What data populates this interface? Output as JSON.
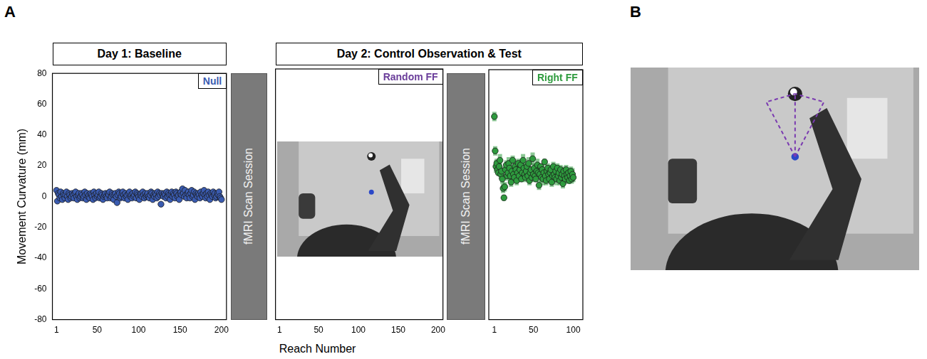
{
  "panel_labels": [
    "A",
    "B"
  ],
  "headers": [
    "Day 1: Baseline",
    "Day 2: Control Observation & Test"
  ],
  "scan_session": "fMRI Scan Session",
  "x_label": "Reach Number",
  "chart_data": [
    {
      "type": "scatter",
      "title": "Null",
      "color": "#3a5bb0",
      "y_label": "Movement Curvature (mm)",
      "xlim": [
        -4,
        206
      ],
      "xticks": [
        1,
        50,
        100,
        150,
        200
      ],
      "ylim": [
        -80,
        80
      ],
      "yticks": [
        -80,
        -60,
        -40,
        -20,
        0,
        20,
        40,
        60,
        80
      ],
      "grid": false,
      "x": [
        1,
        2,
        3,
        4,
        5,
        6,
        7,
        8,
        9,
        10,
        11,
        12,
        13,
        14,
        15,
        16,
        17,
        18,
        19,
        20,
        21,
        22,
        23,
        24,
        25,
        26,
        27,
        28,
        29,
        30,
        31,
        32,
        33,
        34,
        35,
        36,
        37,
        38,
        39,
        40,
        41,
        42,
        43,
        44,
        45,
        46,
        47,
        48,
        49,
        50,
        51,
        52,
        53,
        54,
        55,
        56,
        57,
        58,
        59,
        60,
        61,
        62,
        63,
        64,
        65,
        66,
        67,
        68,
        69,
        70,
        71,
        72,
        73,
        74,
        75,
        76,
        77,
        78,
        79,
        80,
        81,
        82,
        83,
        84,
        85,
        86,
        87,
        88,
        89,
        90,
        91,
        92,
        93,
        94,
        95,
        96,
        97,
        98,
        99,
        100,
        101,
        102,
        103,
        104,
        105,
        106,
        107,
        108,
        109,
        110,
        111,
        112,
        113,
        114,
        115,
        116,
        117,
        118,
        119,
        120,
        121,
        122,
        123,
        124,
        125,
        126,
        127,
        128,
        129,
        130,
        131,
        132,
        133,
        134,
        135,
        136,
        137,
        138,
        139,
        140,
        141,
        142,
        143,
        144,
        145,
        146,
        147,
        148,
        149,
        150,
        151,
        152,
        153,
        154,
        155,
        156,
        157,
        158,
        159,
        160,
        161,
        162,
        163,
        164,
        165,
        166,
        167,
        168,
        169,
        170,
        171,
        172,
        173,
        174,
        175,
        176,
        177,
        178,
        179,
        180,
        181,
        182,
        183,
        184,
        185,
        186,
        187,
        188,
        189,
        190,
        191,
        192,
        193,
        194,
        195,
        196,
        197,
        198,
        199,
        200
      ],
      "values": [
        4,
        -3,
        2,
        1,
        -1,
        3,
        0,
        -2,
        2,
        1,
        -1,
        1,
        3,
        0,
        -2,
        2,
        1,
        -1,
        0,
        2,
        1,
        -1,
        2,
        3,
        0,
        -2,
        1,
        2,
        -1,
        0,
        2,
        1,
        -1,
        0,
        3,
        1,
        -2,
        2,
        0,
        1,
        -1,
        2,
        1,
        0,
        -2,
        3,
        1,
        -1,
        2,
        0,
        1,
        3,
        -1,
        0,
        2,
        1,
        -2,
        0,
        1,
        2,
        0,
        -1,
        2,
        1,
        3,
        -1,
        0,
        2,
        1,
        -2,
        1,
        2,
        0,
        -4,
        1,
        3,
        2,
        -1,
        0,
        2,
        3,
        1,
        -1,
        2,
        0,
        1,
        -2,
        2,
        3,
        0,
        1,
        -1,
        2,
        0,
        1,
        3,
        -1,
        2,
        1,
        0,
        -2,
        1,
        2,
        0,
        3,
        1,
        -1,
        2,
        0,
        1,
        2,
        0,
        -1,
        1,
        3,
        2,
        -2,
        1,
        0,
        2,
        1,
        -1,
        3,
        0,
        2,
        1,
        -5,
        2,
        1,
        0,
        2,
        1,
        -1,
        3,
        0,
        2,
        1,
        -2,
        1,
        3,
        0,
        2,
        1,
        -1,
        3,
        2,
        0,
        1,
        -2,
        2,
        3,
        1,
        5,
        2,
        0,
        4,
        1,
        -1,
        2,
        3,
        1,
        -1,
        2,
        4,
        0,
        1,
        3,
        -2,
        2,
        1,
        0,
        2,
        1,
        -1,
        3,
        1,
        0,
        2,
        4,
        1,
        -1,
        2,
        0,
        3,
        1,
        -2,
        2,
        1,
        0,
        3,
        1,
        2,
        -1,
        0,
        2,
        1,
        3,
        0,
        -1,
        -2
      ]
    },
    {
      "type": "scatter",
      "title": "Random FF",
      "color": "#6a3d9a",
      "tick_labels": "x",
      "xlim": [
        -4,
        206
      ],
      "xticks": [
        1,
        50,
        100,
        150,
        200
      ],
      "ylim": [
        -80,
        80
      ],
      "yticks": [
        -80,
        -60,
        -40,
        -20,
        0,
        20,
        40,
        60,
        80
      ],
      "grid": false,
      "x": [],
      "values": []
    },
    {
      "type": "scatter",
      "title": "Right FF",
      "color": "#2e9b3e",
      "tick_labels": "x",
      "xlim": [
        -6,
        112
      ],
      "xticks": [
        1,
        50,
        100
      ],
      "ylim": [
        -80,
        80
      ],
      "yticks": [
        -80,
        -60,
        -40,
        -20,
        0,
        20,
        40,
        60,
        80
      ],
      "grid": false,
      "x": [
        1,
        2,
        3,
        4,
        5,
        6,
        7,
        8,
        9,
        10,
        11,
        12,
        13,
        14,
        15,
        16,
        17,
        18,
        19,
        20,
        21,
        22,
        23,
        24,
        25,
        26,
        27,
        28,
        29,
        30,
        31,
        32,
        33,
        34,
        35,
        36,
        37,
        38,
        39,
        40,
        41,
        42,
        43,
        44,
        45,
        46,
        47,
        48,
        49,
        50,
        51,
        52,
        53,
        54,
        55,
        56,
        57,
        58,
        59,
        60,
        61,
        62,
        63,
        64,
        65,
        66,
        67,
        68,
        69,
        70,
        71,
        72,
        73,
        74,
        75,
        76,
        77,
        78,
        79,
        80,
        81,
        82,
        83,
        84,
        85,
        86,
        87,
        88,
        89,
        90,
        91,
        92,
        93,
        94,
        95,
        96,
        97,
        98,
        99,
        100
      ],
      "values": [
        50,
        28,
        18,
        20,
        16,
        14,
        18,
        22,
        13,
        15,
        10,
        4,
        -2,
        5,
        16,
        19,
        12,
        14,
        20,
        17,
        12,
        8,
        15,
        22,
        13,
        11,
        18,
        16,
        9,
        14,
        20,
        12,
        16,
        19,
        10,
        14,
        22,
        17,
        13,
        11,
        15,
        18,
        12,
        20,
        9,
        14,
        16,
        11,
        23,
        13,
        17,
        12,
        10,
        15,
        19,
        14,
        6,
        13,
        18,
        11,
        16,
        10,
        14,
        21,
        12,
        9,
        15,
        17,
        13,
        10,
        14,
        16,
        8,
        12,
        18,
        13,
        11,
        15,
        10,
        17,
        12,
        14,
        9,
        16,
        11,
        13,
        7,
        15,
        12,
        10,
        16,
        13,
        11,
        14,
        9,
        12,
        15,
        10,
        13,
        11
      ],
      "errors": [
        3,
        3,
        4,
        3,
        3,
        2,
        3,
        4,
        3,
        3,
        3,
        3,
        2,
        3,
        4,
        3,
        3,
        2,
        4,
        3,
        3,
        3,
        4,
        3,
        2,
        3,
        4,
        3,
        3,
        2,
        3,
        3,
        4,
        3,
        2,
        3,
        4,
        3,
        3,
        3,
        2,
        3,
        3,
        4,
        3,
        3,
        2,
        3,
        4,
        3,
        3,
        3,
        2,
        3,
        4,
        3,
        3,
        3,
        2,
        3,
        3,
        4,
        3,
        2,
        3,
        3,
        4,
        3,
        3,
        2,
        3,
        3,
        3,
        4,
        3,
        2,
        3,
        3,
        4,
        3,
        3,
        2,
        3,
        3,
        3,
        4,
        3,
        3,
        2,
        3,
        3,
        3,
        4,
        3,
        2,
        3,
        3,
        3,
        4,
        3
      ]
    }
  ]
}
